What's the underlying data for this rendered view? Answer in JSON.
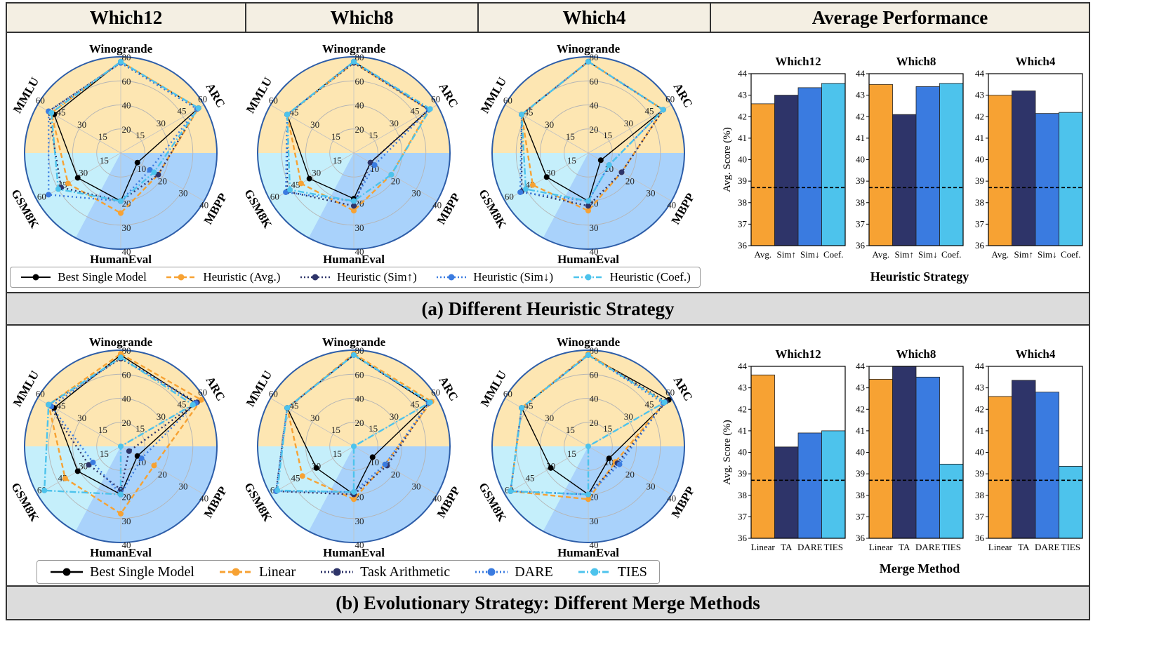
{
  "header": {
    "col1": "Which12",
    "col2": "Which8",
    "col3": "Which4",
    "col4": "Average Performance"
  },
  "section_a": {
    "caption": "(a) Different Heuristic Strategy",
    "bar_xtitle": "Heuristic Strategy"
  },
  "section_b": {
    "caption": "(b) Evolutionary Strategy: Different Merge Methods",
    "bar_xtitle": "Merge Method"
  },
  "colors": {
    "best": "#000000",
    "orange": "#f7a233",
    "navy": "#2e3469",
    "blue": "#3a7be0",
    "cyan": "#4dc3ec",
    "bg_top": "#fde6b2",
    "bg_bottom": "#a9d2fb",
    "bg_wedge": "#c5effb",
    "ring": "#2d5da8"
  },
  "legend_a": [
    "Best Single Model",
    "Heuristic (Avg.)",
    "Heuristic (Sim↑)",
    "Heuristic (Sim↓)",
    "Heuristic (Coef.)"
  ],
  "legend_b": [
    "Best Single Model",
    "Linear",
    "Task Arithmetic",
    "DARE",
    "TIES"
  ],
  "chart_data": [
    {
      "type": "radar",
      "panel": "a-Which12",
      "axes": [
        "Winogrande",
        "ARC",
        "MBPP",
        "HumanEval",
        "GSM8K",
        "MMLU"
      ],
      "axis_max": [
        80,
        60,
        40,
        40,
        60,
        60
      ],
      "axis_ticks": [
        [
          20,
          40,
          60,
          80
        ],
        [
          15,
          30,
          45,
          60
        ],
        [
          10,
          20,
          30,
          40
        ],
        [
          20,
          30,
          40
        ],
        [
          15,
          30,
          45,
          60
        ],
        [
          15,
          30,
          45,
          60
        ]
      ],
      "series": [
        {
          "name": "Best Single Model",
          "values": [
            76,
            56,
            8,
            20,
            31,
            48
          ]
        },
        {
          "name": "Heuristic (Avg.)",
          "values": [
            76,
            56,
            18,
            25,
            38,
            50
          ]
        },
        {
          "name": "Heuristic (Sim↑)",
          "values": [
            75,
            55,
            18,
            20,
            43,
            52
          ]
        },
        {
          "name": "Heuristic (Sim↓)",
          "values": [
            75,
            55,
            14,
            20,
            52,
            52
          ]
        },
        {
          "name": "Heuristic (Coef.)",
          "values": [
            76,
            56,
            16,
            20,
            45,
            50
          ]
        }
      ]
    },
    {
      "type": "radar",
      "panel": "a-Which8",
      "axes": [
        "Winogrande",
        "ARC",
        "MBPP",
        "HumanEval",
        "GSM8K",
        "MMLU"
      ],
      "axis_max": [
        80,
        60,
        40,
        40,
        60,
        60
      ],
      "axis_ticks": [
        [
          20,
          40,
          60,
          80
        ],
        [
          15,
          30,
          45,
          60
        ],
        [
          10,
          20,
          30,
          40
        ],
        [
          20,
          30,
          40
        ],
        [
          15,
          30,
          45,
          60
        ],
        [
          15,
          30,
          45,
          60
        ]
      ],
      "series": [
        {
          "name": "Best Single Model",
          "values": [
            76,
            54,
            8,
            19,
            32,
            48
          ]
        },
        {
          "name": "Heuristic (Avg.)",
          "values": [
            75,
            54,
            18,
            24,
            38,
            48
          ]
        },
        {
          "name": "Heuristic (Sim↑)",
          "values": [
            75,
            54,
            8,
            22,
            48,
            48
          ]
        },
        {
          "name": "Heuristic (Sim↓)",
          "values": [
            76,
            54,
            10,
            20,
            49,
            48
          ]
        },
        {
          "name": "Heuristic (Coef.)",
          "values": [
            76,
            55,
            18,
            20,
            46,
            48
          ]
        }
      ]
    },
    {
      "type": "radar",
      "panel": "a-Which4",
      "axes": [
        "Winogrande",
        "ARC",
        "MBPP",
        "HumanEval",
        "GSM8K",
        "MMLU"
      ],
      "axis_max": [
        80,
        60,
        40,
        40,
        60,
        60
      ],
      "axis_ticks": [
        [
          20,
          40,
          60,
          80
        ],
        [
          15,
          30,
          45,
          60
        ],
        [
          10,
          20,
          30,
          40
        ],
        [
          20,
          30,
          40
        ],
        [
          15,
          30,
          45,
          60
        ],
        [
          15,
          30,
          45,
          60
        ]
      ],
      "series": [
        {
          "name": "Best Single Model",
          "values": [
            76,
            54,
            6,
            20,
            30,
            48
          ]
        },
        {
          "name": "Heuristic (Avg.)",
          "values": [
            76,
            54,
            16,
            24,
            40,
            48
          ]
        },
        {
          "name": "Heuristic (Sim↑)",
          "values": [
            76,
            54,
            16,
            22,
            48,
            48
          ]
        },
        {
          "name": "Heuristic (Sim↓)",
          "values": [
            76,
            54,
            10,
            20,
            49,
            48
          ]
        },
        {
          "name": "Heuristic (Coef.)",
          "values": [
            76,
            54,
            10,
            20,
            45,
            48
          ]
        }
      ]
    },
    {
      "type": "radar",
      "panel": "b-Which12",
      "axes": [
        "Winogrande",
        "ARC",
        "MBPP",
        "HumanEval",
        "GSM8K",
        "MMLU"
      ],
      "axis_max": [
        80,
        60,
        40,
        40,
        60,
        60
      ],
      "axis_ticks": [
        [
          20,
          40,
          60,
          80
        ],
        [
          15,
          30,
          45,
          60
        ],
        [
          10,
          20,
          30,
          40
        ],
        [
          20,
          30,
          40
        ],
        [
          15,
          30,
          45,
          60
        ],
        [
          15,
          30,
          45,
          60
        ]
      ],
      "series": [
        {
          "name": "Best Single Model",
          "values": [
            76,
            54,
            8,
            20,
            31,
            48
          ]
        },
        {
          "name": "Linear",
          "values": [
            77,
            58,
            16,
            28,
            40,
            52
          ]
        },
        {
          "name": "Task Arithmetic",
          "values": [
            73,
            55,
            4,
            18,
            23,
            52
          ]
        },
        {
          "name": "DARE",
          "values": [
            74,
            54,
            10,
            20,
            20,
            50
          ]
        },
        {
          "name": "TIES",
          "values": [
            74,
            52,
            0,
            20,
            55,
            52
          ]
        }
      ]
    },
    {
      "type": "radar",
      "panel": "b-Which8",
      "axes": [
        "Winogrande",
        "ARC",
        "MBPP",
        "HumanEval",
        "GSM8K",
        "MMLU"
      ],
      "axis_max": [
        80,
        60,
        40,
        40,
        60,
        60
      ],
      "axis_ticks": [
        [
          20,
          40,
          60,
          80
        ],
        [
          15,
          30,
          45,
          60
        ],
        [
          10,
          20,
          30,
          40
        ],
        [
          20,
          30,
          40
        ],
        [
          15,
          30,
          45,
          60
        ],
        [
          15,
          30,
          45,
          60
        ]
      ],
      "series": [
        {
          "name": "Best Single Model",
          "values": [
            76,
            54,
            9,
            20,
            27,
            48
          ]
        },
        {
          "name": "Linear",
          "values": [
            77,
            56,
            15,
            22,
            37,
            48
          ]
        },
        {
          "name": "Task Arithmetic",
          "values": [
            76,
            54,
            16,
            20,
            56,
            48
          ]
        },
        {
          "name": "DARE",
          "values": [
            76,
            54,
            15,
            19,
            56,
            48
          ]
        },
        {
          "name": "TIES",
          "values": [
            76,
            55,
            0,
            19,
            55,
            48
          ]
        }
      ]
    },
    {
      "type": "radar",
      "panel": "b-Which4",
      "axes": [
        "Winogrande",
        "ARC",
        "MBPP",
        "HumanEval",
        "GSM8K",
        "MMLU"
      ],
      "axis_max": [
        80,
        60,
        40,
        40,
        60,
        60
      ],
      "axis_ticks": [
        [
          20,
          40,
          60,
          80
        ],
        [
          15,
          30,
          45,
          60
        ],
        [
          10,
          20,
          30,
          40
        ],
        [
          20,
          30,
          40
        ],
        [
          15,
          30,
          45,
          60
        ],
        [
          15,
          30,
          45,
          60
        ]
      ],
      "series": [
        {
          "name": "Best Single Model",
          "values": [
            76,
            58,
            10,
            20,
            27,
            48
          ]
        },
        {
          "name": "Linear",
          "values": [
            77,
            55,
            13,
            22,
            56,
            48
          ]
        },
        {
          "name": "Task Arithmetic",
          "values": [
            76,
            56,
            14,
            20,
            56,
            48
          ]
        },
        {
          "name": "DARE",
          "values": [
            76,
            54,
            15,
            20,
            56,
            48
          ]
        },
        {
          "name": "TIES",
          "values": [
            76,
            55,
            0,
            20,
            56,
            48
          ]
        }
      ]
    },
    {
      "type": "bar",
      "panel": "a-avg",
      "ylabel": "Avg. Score (%)",
      "ylim": [
        36,
        44
      ],
      "yticks": [
        36,
        37,
        38,
        39,
        40,
        41,
        42,
        43,
        44
      ],
      "reference_line": 38.7,
      "categories": [
        "Avg.",
        "Sim↑",
        "Sim↓",
        "Coef."
      ],
      "subplots": [
        {
          "title": "Which12",
          "values": [
            42.6,
            43.0,
            43.35,
            43.55
          ]
        },
        {
          "title": "Which8",
          "values": [
            43.5,
            42.1,
            43.4,
            43.55
          ]
        },
        {
          "title": "Which4",
          "values": [
            43.0,
            43.2,
            42.15,
            42.2
          ]
        }
      ]
    },
    {
      "type": "bar",
      "panel": "b-avg",
      "ylabel": "Avg. Score (%)",
      "ylim": [
        36,
        44
      ],
      "yticks": [
        36,
        37,
        38,
        39,
        40,
        41,
        42,
        43,
        44
      ],
      "reference_line": 38.7,
      "categories": [
        "Linear",
        "TA",
        "DARE",
        "TIES"
      ],
      "subplots": [
        {
          "title": "Which12",
          "values": [
            43.6,
            40.25,
            40.9,
            41.0
          ]
        },
        {
          "title": "Which8",
          "values": [
            43.4,
            44.0,
            43.5,
            39.45
          ]
        },
        {
          "title": "Which4",
          "values": [
            42.6,
            43.35,
            42.8,
            39.35
          ]
        }
      ]
    }
  ]
}
